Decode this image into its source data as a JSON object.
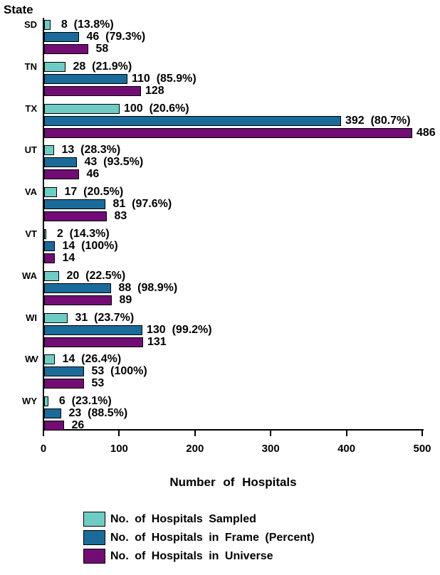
{
  "page": {
    "background": "#FFFFFF",
    "text_color": "#000000"
  },
  "chart_data": {
    "type": "bar",
    "orientation": "horizontal",
    "title": "",
    "xlabel": "Number of Hospitals",
    "ylabel": "State",
    "xlim": [
      0,
      500
    ],
    "xticks": [
      0,
      100,
      200,
      300,
      400,
      500
    ],
    "grid": false,
    "legend_position": "bottom",
    "axis_color": "#000000",
    "categories": [
      "SD",
      "TN",
      "TX",
      "UT",
      "VA",
      "VT",
      "WA",
      "WI",
      "WV",
      "WY"
    ],
    "series": [
      {
        "name": "No. of Hospitals Sampled",
        "color": "#6FCCC4",
        "values": [
          8,
          28,
          100,
          13,
          17,
          2,
          20,
          31,
          14,
          6
        ],
        "percents": [
          "13.8%",
          "21.9%",
          "20.6%",
          "28.3%",
          "20.5%",
          "14.3%",
          "22.5%",
          "23.7%",
          "26.4%",
          "23.1%"
        ]
      },
      {
        "name": "No. of Hospitals in Frame (Percent)",
        "color": "#1A6B99",
        "values": [
          46,
          110,
          392,
          43,
          81,
          14,
          88,
          130,
          53,
          23
        ],
        "percents": [
          "79.3%",
          "85.9%",
          "80.7%",
          "93.5%",
          "97.6%",
          "100%",
          "98.9%",
          "99.2%",
          "100%",
          "88.5%"
        ]
      },
      {
        "name": "No. of Hospitals in Universe",
        "color": "#710D74",
        "values": [
          58,
          128,
          486,
          46,
          83,
          14,
          89,
          131,
          53,
          26
        ],
        "percents": null
      }
    ]
  }
}
